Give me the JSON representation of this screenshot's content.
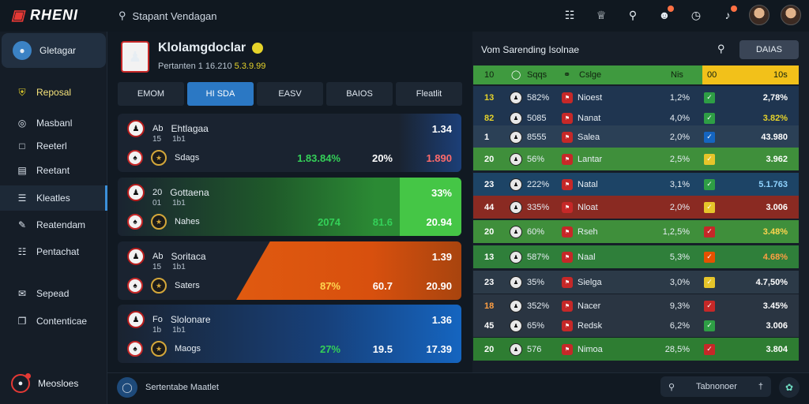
{
  "app": {
    "logo": "RHENI"
  },
  "search": {
    "text": "Stapant Vendagan"
  },
  "top_icons": [
    "keyboard-icon",
    "trophy-icon",
    "search-icon",
    "users-icon",
    "clock-icon",
    "bell-icon"
  ],
  "sidebar": {
    "top_label": "Gletagar",
    "items": [
      {
        "label": "Reposal",
        "icon": "shield-icon",
        "highlight": true
      },
      {
        "label": "Masbanl",
        "icon": "target-icon"
      },
      {
        "label": "Reeterl",
        "icon": "calendar-icon"
      },
      {
        "label": "Reetant",
        "icon": "list-icon"
      },
      {
        "label": "Kleatles",
        "icon": "bars-icon",
        "selected": true
      },
      {
        "label": "Reatendam",
        "icon": "pen-icon"
      },
      {
        "label": "Pentachat",
        "icon": "doc-icon"
      },
      {
        "label": "Sepead",
        "icon": "mail-icon"
      },
      {
        "label": "Contenticae",
        "icon": "copy-icon"
      }
    ],
    "bottom_label": "Meosloes"
  },
  "header": {
    "title": "Klolamgdoclar",
    "subtitle_prefix": "Pertanten 1 16.210",
    "subtitle_highlight": "5.3.9.99"
  },
  "tabs": [
    "EMOM",
    "HI SDA",
    "EASV",
    "BAIOS",
    "Fleatlit"
  ],
  "matches": [
    {
      "row1_id": "Ab",
      "row1_name": "Ehtlagaa",
      "row1_sub": "15",
      "row1_sub2": "1b1",
      "row2_name": "Sdags",
      "odd_top": "1.34",
      "pct": "1.83.84%",
      "mid": "20%",
      "odd_bottom": "1.890",
      "accent": "#1a4f9a",
      "pct_color": "#34d058",
      "mid_color": "#ffffff",
      "bottom_color": "#ff6b6b"
    },
    {
      "row1_id": "20",
      "row1_name": "Gottaena",
      "row1_sub": "01",
      "row1_sub2": "1b1",
      "row2_name": "Nahes",
      "odd_top": "33%",
      "pct": "2074",
      "mid": "81.6",
      "odd_bottom": "20.94",
      "accent": "#2b9a3a",
      "pct_color": "#34d058",
      "mid_color": "#34d058",
      "bottom_color": "#ffffff"
    },
    {
      "row1_id": "Ab",
      "row1_name": "Soritaca",
      "row1_sub": "15",
      "row1_sub2": "1b1",
      "row2_name": "Saters",
      "odd_top": "1.39",
      "pct": "87%",
      "mid": "60.7",
      "odd_bottom": "20.90",
      "accent": "#e06a14",
      "pct_color": "#ffd54f",
      "mid_color": "#ffffff",
      "bottom_color": "#ffffff"
    },
    {
      "row1_id": "Fo",
      "row1_name": "Slolonare",
      "row1_sub": "1b",
      "row1_sub2": "1b1",
      "row2_name": "Maogs",
      "odd_top": "1.36",
      "pct": "27%",
      "mid": "19.5",
      "odd_bottom": "17.39",
      "accent": "#1565c0",
      "pct_color": "#34d058",
      "mid_color": "#ffffff",
      "bottom_color": "#ffffff"
    }
  ],
  "right_panel": {
    "title": "Vom Sarending Isolnae",
    "button": "DAIAS",
    "headers": [
      "10",
      "Sqqs",
      "Cslge",
      "Nis",
      "00",
      "10s"
    ],
    "rows": [
      {
        "rank": "13",
        "pct": "582%",
        "team": "Nioest",
        "val": "1,2%",
        "odds": "2,78%",
        "rank_color": "#e6d32a",
        "check": "#2e9e45",
        "bg": "#1f3550",
        "odds_color": "#ffffff"
      },
      {
        "rank": "82",
        "pct": "5085",
        "team": "Nanat",
        "val": "4,0%",
        "odds": "3.82%",
        "rank_color": "#e6d32a",
        "check": "#2e9e45",
        "bg": "#1f3550",
        "odds_color": "#e6d32a"
      },
      {
        "rank": "1",
        "pct": "8555",
        "team": "Salea",
        "val": "2,0%",
        "odds": "43.980",
        "rank_color": "#ffffff",
        "check": "#1565c0",
        "bg": "#2b4056",
        "odds_color": "#ffffff"
      },
      {
        "rank": "20",
        "pct": "56%",
        "team": "Lantar",
        "val": "2,5%",
        "odds": "3.962",
        "rank_color": "#ffffff",
        "check": "#e6c52a",
        "bg": "#3f8f3b",
        "odds_color": "#ffffff"
      },
      {
        "rank": "23",
        "pct": "222%",
        "team": "Natal",
        "val": "3,1%",
        "odds": "5.1.763",
        "rank_color": "#ffffff",
        "check": "#2e9e45",
        "bg": "#1d4466",
        "odds_color": "#8fd3ff"
      },
      {
        "rank": "44",
        "pct": "335%",
        "team": "Nloat",
        "val": "2,0%",
        "odds": "3.006",
        "rank_color": "#ffffff",
        "check": "#e6c52a",
        "bg": "#8a2a22",
        "odds_color": "#ffffff"
      },
      {
        "rank": "20",
        "pct": "60%",
        "team": "Rseh",
        "val": "1,2,5%",
        "odds": "3.48%",
        "rank_color": "#ffffff",
        "check": "#c62828",
        "bg": "#3f8f3b",
        "odds_color": "#ffd54f"
      },
      {
        "rank": "13",
        "pct": "587%",
        "team": "Naal",
        "val": "5,3%",
        "odds": "4.68%",
        "rank_color": "#ffffff",
        "check": "#e65100",
        "bg": "#2f7f3a",
        "odds_color": "#ff9f43"
      },
      {
        "rank": "23",
        "pct": "35%",
        "team": "Sielga",
        "val": "3,0%",
        "odds": "4.7,50%",
        "rank_color": "#ffffff",
        "check": "#e6c52a",
        "bg": "#2c3a48",
        "odds_color": "#ffffff"
      },
      {
        "rank": "18",
        "pct": "352%",
        "team": "Nacer",
        "val": "9,3%",
        "odds": "3.45%",
        "rank_color": "#ff9f43",
        "check": "#c62828",
        "bg": "#2a3542",
        "odds_color": "#ffffff"
      },
      {
        "rank": "45",
        "pct": "65%",
        "team": "Redsk",
        "val": "6,2%",
        "odds": "3.006",
        "rank_color": "#ffffff",
        "check": "#2e9e45",
        "bg": "#2a3542",
        "odds_color": "#ffffff"
      },
      {
        "rank": "20",
        "pct": "576",
        "team": "Nimoa",
        "val": "28,5%",
        "odds": "3.804",
        "rank_color": "#ffffff",
        "check": "#c62828",
        "bg": "#2e7d32",
        "odds_color": "#ffffff"
      }
    ]
  },
  "bottom": {
    "left_label": "Sertentabe Maatlet",
    "search_label": "Tabnonoer"
  }
}
